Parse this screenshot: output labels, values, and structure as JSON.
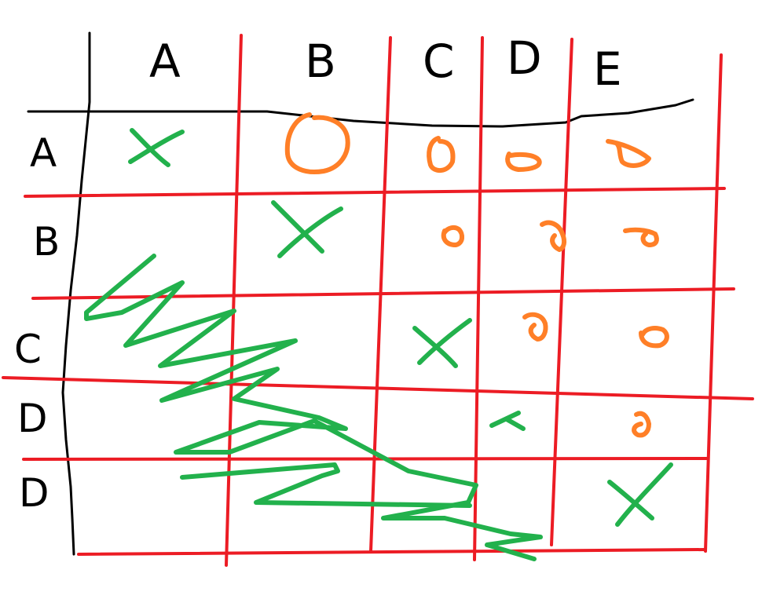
{
  "columns": [
    "A",
    "B",
    "C",
    "D",
    "E"
  ],
  "rows": [
    "A",
    "B",
    "C",
    "D",
    "D"
  ],
  "colors": {
    "ink": "#000000",
    "grid": "#ec1c24",
    "mark_x": "#22b14c",
    "mark_circle": "#ff7f27",
    "scribble": "#22b14c"
  },
  "diagonal_mark": "x",
  "upper_mark": "circle",
  "lower_mark": "scribble-out",
  "stray_mark": "small-x"
}
